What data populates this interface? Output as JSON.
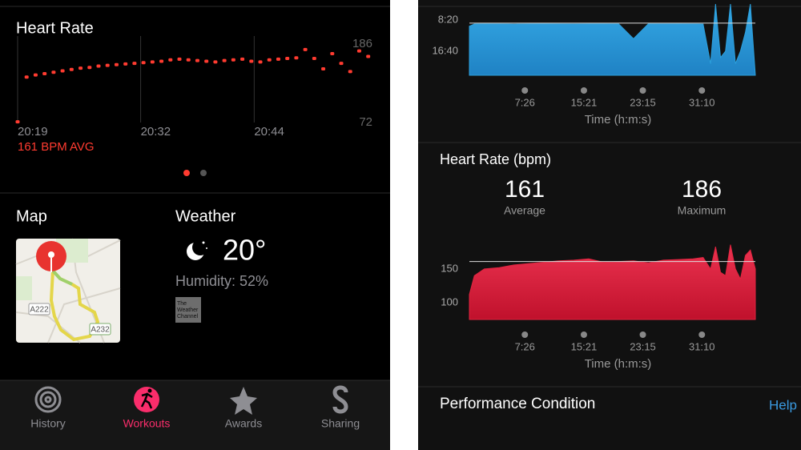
{
  "chart_data": [
    {
      "type": "scatter",
      "title": "Heart Rate",
      "annotation": "161 BPM AVG",
      "color": "#ff3b30",
      "x": [
        0,
        0.95,
        1.9,
        2.85,
        3.8,
        4.75,
        5.7,
        6.65,
        7.6,
        8.55,
        9.5,
        10.45,
        11.4,
        12.35,
        13.3,
        14.25,
        15.2,
        16.15,
        17.1,
        18.05,
        19,
        19.95,
        20.9,
        21.85,
        22.8,
        23.75,
        24.7,
        25.65,
        26.6,
        27.55,
        28.5,
        29.45,
        30.4,
        31.35,
        32.3,
        33.25,
        34.2,
        35.15,
        36.1,
        37.05
      ],
      "values": [
        73,
        138,
        141,
        143,
        145,
        147,
        149,
        151,
        152,
        154,
        155,
        156,
        157,
        158,
        159,
        160,
        161,
        163,
        164,
        163,
        162,
        161,
        160,
        162,
        163,
        164,
        161,
        160,
        163,
        164,
        165,
        166,
        178,
        165,
        150,
        172,
        158,
        146,
        176,
        168
      ],
      "xlim": [
        0,
        37.5
      ],
      "xticks": [
        {
          "value": 0,
          "label": "20:19"
        },
        {
          "value": 13,
          "label": "20:32"
        },
        {
          "value": 25,
          "label": "20:44"
        }
      ],
      "ylim": [
        72,
        186
      ],
      "yticks": [
        186,
        72
      ]
    },
    {
      "type": "area",
      "xlabel": "Time (h:m:s)",
      "color": "#2b9fdc",
      "reference_line": 550,
      "x": [
        0,
        40,
        120,
        240,
        360,
        480,
        600,
        720,
        840,
        960,
        1080,
        1200,
        1320,
        1440,
        1560,
        1680,
        1800,
        1880,
        1940,
        1980,
        2020,
        2060,
        2100,
        2140,
        2180,
        2220,
        2260,
        2300
      ],
      "values": [
        600,
        565,
        560,
        562,
        566,
        560,
        558,
        562,
        565,
        560,
        560,
        562,
        800,
        560,
        562,
        560,
        563,
        566,
        1200,
        245,
        1100,
        1000,
        245,
        1200,
        1000,
        700,
        245,
        1385
      ],
      "xlim": [
        0,
        2300
      ],
      "xticks": [
        {
          "value": 446,
          "label": "7:26"
        },
        {
          "value": 921,
          "label": "15:21"
        },
        {
          "value": 1395,
          "label": "23:15"
        },
        {
          "value": 1870,
          "label": "31:10"
        }
      ],
      "ylim": [
        1385,
        180
      ],
      "yticks": [
        {
          "value": 500,
          "label": "8:20"
        },
        {
          "value": 1000,
          "label": "16:40"
        }
      ]
    },
    {
      "type": "area",
      "title": "Heart Rate (bpm)",
      "xlabel": "Time (h:m:s)",
      "color": "#e0243f",
      "stats": [
        {
          "value": 161,
          "label": "Average"
        },
        {
          "value": 186,
          "label": "Maximum"
        }
      ],
      "x": [
        0,
        40,
        120,
        240,
        360,
        480,
        600,
        720,
        840,
        960,
        1080,
        1200,
        1320,
        1440,
        1560,
        1680,
        1800,
        1880,
        1940,
        1980,
        2020,
        2060,
        2100,
        2140,
        2180,
        2220,
        2260,
        2300
      ],
      "values": [
        112,
        140,
        150,
        152,
        156,
        158,
        160,
        162,
        163,
        165,
        160,
        161,
        162,
        159,
        163,
        164,
        165,
        167,
        150,
        183,
        145,
        140,
        186,
        150,
        135,
        170,
        178,
        150
      ],
      "xlim": [
        0,
        2300
      ],
      "xticks": [
        {
          "value": 446,
          "label": "7:26"
        },
        {
          "value": 921,
          "label": "15:21"
        },
        {
          "value": 1395,
          "label": "23:15"
        },
        {
          "value": 1870,
          "label": "31:10"
        }
      ],
      "ylim": [
        75,
        195
      ],
      "yticks": [
        150,
        100
      ]
    }
  ],
  "map": {
    "title": "Map",
    "road_labels": [
      "A222",
      "A232"
    ]
  },
  "weather": {
    "title": "Weather",
    "temperature": "20°",
    "humidity": "Humidity: 52%",
    "provider": [
      "The",
      "Weather",
      "Channel"
    ]
  },
  "tabs": [
    "History",
    "Workouts",
    "Awards",
    "Sharing"
  ],
  "performance": {
    "title": "Performance Condition",
    "help": "Help"
  }
}
